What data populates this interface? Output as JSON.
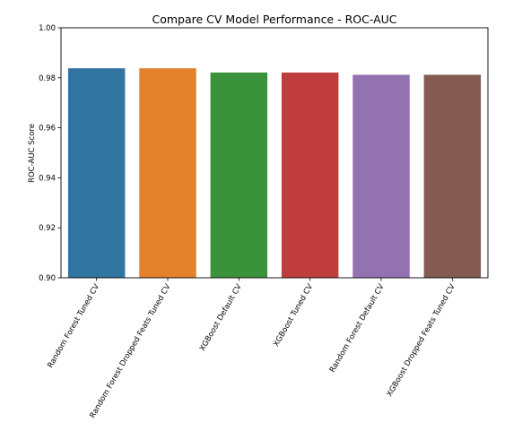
{
  "chart_data": {
    "type": "bar",
    "title": "Compare CV Model Performance - ROC-AUC",
    "xlabel": "",
    "ylabel": "ROC-AUC Score",
    "ylim": [
      0.9,
      1.0
    ],
    "yticks": [
      "0.90",
      "0.92",
      "0.94",
      "0.96",
      "0.98",
      "1.00"
    ],
    "grid": false,
    "categories": [
      "Random Forest Tuned CV",
      "Random Forest Dropped Feats Tuned CV",
      "XGBoost Default CV",
      "XGBoost Tuned CV",
      "Random Forest Default CV",
      "XGBoost Dropped Feats Tuned CV"
    ],
    "values": [
      0.9838,
      0.9838,
      0.9821,
      0.9821,
      0.9812,
      0.9812
    ],
    "colors": [
      "#3274a1",
      "#e1812c",
      "#3a923a",
      "#c03d3e",
      "#9372b2",
      "#845b53"
    ]
  }
}
